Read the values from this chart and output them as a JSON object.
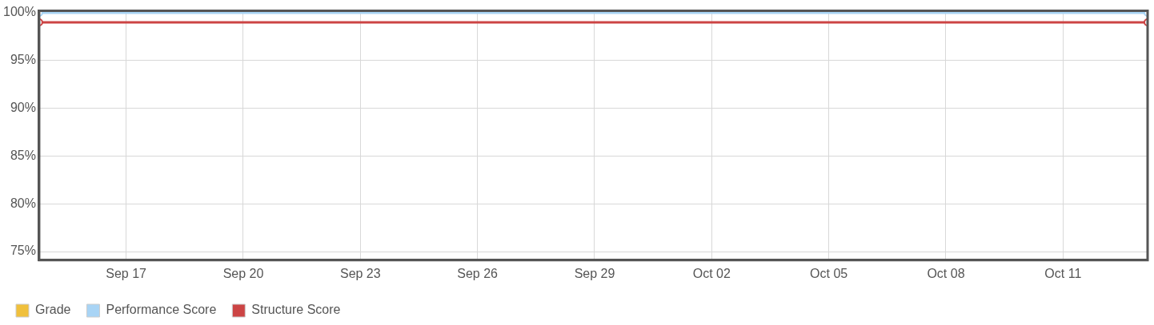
{
  "chart_data": {
    "type": "line",
    "x": [
      "--09-14T18:30",
      "--10-13T04:00"
    ],
    "series": [
      {
        "name": "Grade",
        "color": "#f0c03c",
        "values": [
          null,
          null
        ]
      },
      {
        "name": "Performance Score",
        "color": "#a8d4f5",
        "values": [
          100,
          100
        ]
      },
      {
        "name": "Structure Score",
        "color": "#cc4444",
        "values": [
          99,
          99
        ]
      }
    ],
    "xlim": [
      "--09-14T18:30",
      "--10-13T04:00"
    ],
    "xticks": [
      {
        "value": "--09-17",
        "label": "Sep 17"
      },
      {
        "value": "--09-20",
        "label": "Sep 20"
      },
      {
        "value": "--09-23",
        "label": "Sep 23"
      },
      {
        "value": "--09-26",
        "label": "Sep 26"
      },
      {
        "value": "--09-29",
        "label": "Sep 29"
      },
      {
        "value": "--10-02",
        "label": "Oct 02"
      },
      {
        "value": "--10-05",
        "label": "Oct 05"
      },
      {
        "value": "--10-08",
        "label": "Oct 08"
      },
      {
        "value": "--10-11",
        "label": "Oct 11"
      }
    ],
    "ylim": [
      74.1,
      100.2
    ],
    "yticks": [
      {
        "value": 75,
        "label": "75%"
      },
      {
        "value": 80,
        "label": "80%"
      },
      {
        "value": 85,
        "label": "85%"
      },
      {
        "value": 90,
        "label": "90%"
      },
      {
        "value": 95,
        "label": "95%"
      },
      {
        "value": 100,
        "label": "100%"
      }
    ],
    "grid": true,
    "legend": "bottom left",
    "marker": "circle",
    "line_style": "solid"
  }
}
